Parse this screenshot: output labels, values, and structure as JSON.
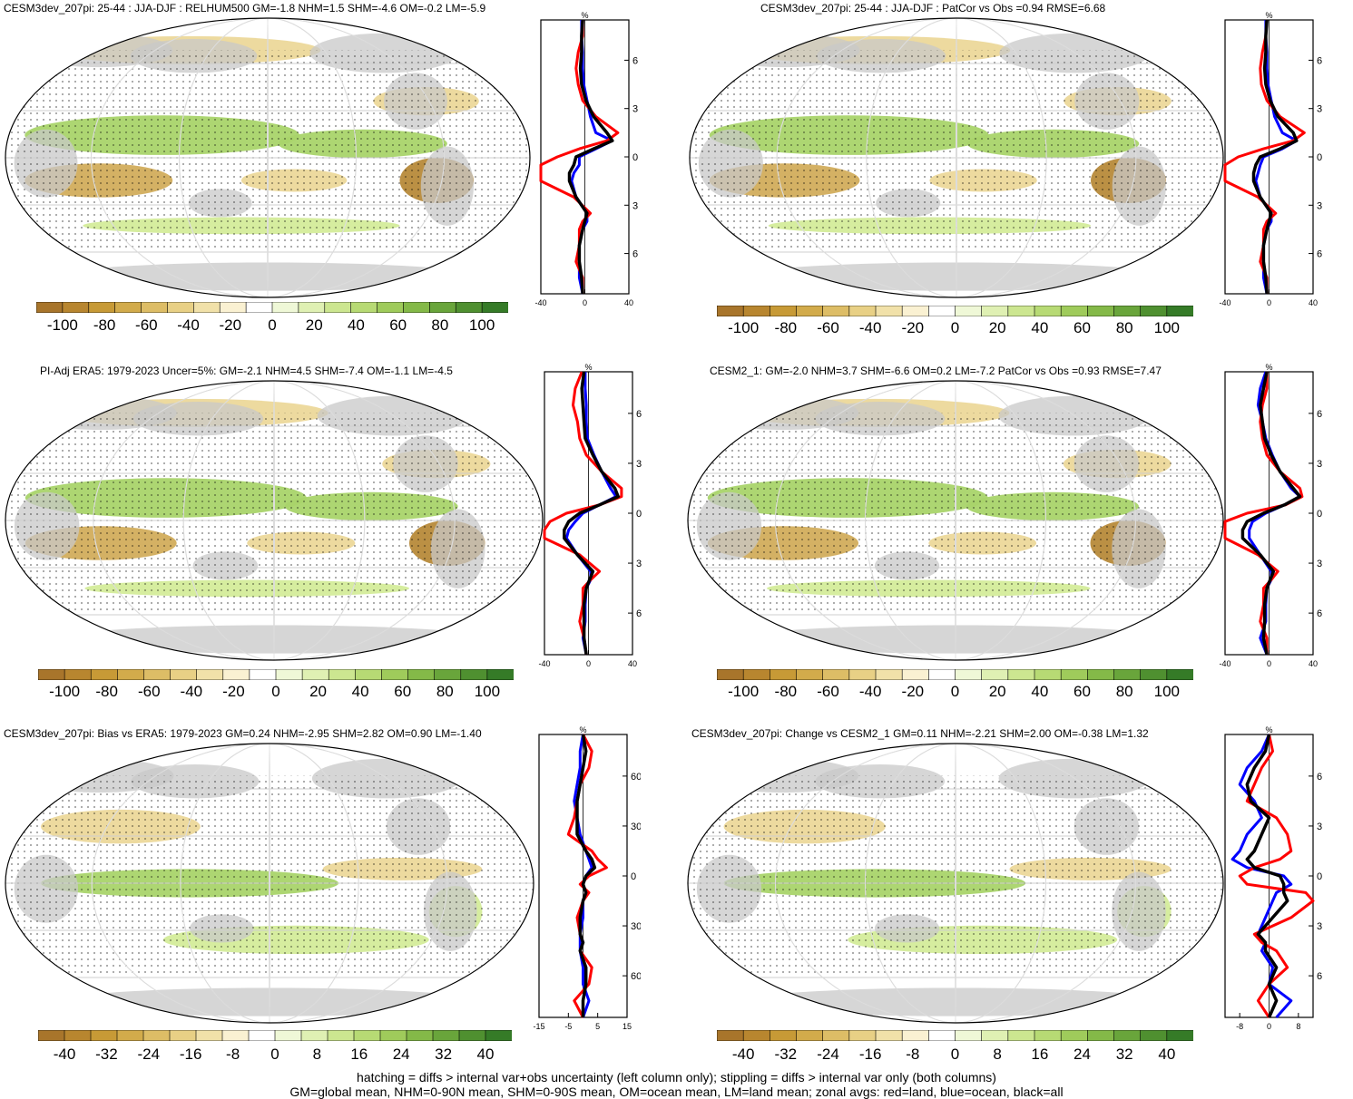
{
  "colors": {
    "ocean": "#ffffff",
    "land": "#c8c8c8",
    "brown_dark": "#b78a3a",
    "brown_mid": "#d2ad5c",
    "brown_light": "#ecd89a",
    "green_light": "#d4ec9a",
    "green_mid": "#a9d46a",
    "green_dark": "#6fae3e",
    "line_land": "#ff0000",
    "line_ocean": "#0000ff",
    "line_all": "#000000"
  },
  "colorbar_colors": [
    "#a8752b",
    "#b8862f",
    "#c79a36",
    "#d2ab4b",
    "#ddbd66",
    "#e8d085",
    "#f1e1a9",
    "#faf1d2",
    "#ffffff",
    "#eff8d7",
    "#dff0b3",
    "#cce690",
    "#b7da74",
    "#9fcb5b",
    "#84b948",
    "#69a53b",
    "#4f9030",
    "#357b27"
  ],
  "panels": [
    {
      "id": "p1",
      "title": "CESM3dev_207pi: 25-44 : JJA-DJF : RELHUM500 GM=-1.8 NHM=1.5 SHM=-4.6 OM=-0.2 LM=-5.9",
      "colorbar_labels": [
        "-100",
        "-80",
        "-60",
        "-40",
        "-20",
        "0",
        "20",
        "40",
        "60",
        "80",
        "100"
      ],
      "zonal_unit": "%",
      "zonal_xticks": [
        "-40",
        "0",
        "40"
      ],
      "zonal_xrange": [
        -40,
        40
      ],
      "zonal_lat_labels": [
        "60N",
        "30N",
        "0",
        "30S",
        "60S"
      ]
    },
    {
      "id": "p2",
      "title": "CESM3dev_207pi: 25-44 : JJA-DJF : PatCor vs Obs =0.94 RMSE=6.68",
      "colorbar_labels": [
        "-100",
        "-80",
        "-60",
        "-40",
        "-20",
        "0",
        "20",
        "40",
        "60",
        "80",
        "100"
      ],
      "zonal_unit": "%",
      "zonal_xticks": [
        "-40",
        "0",
        "40"
      ],
      "zonal_xrange": [
        -40,
        40
      ],
      "zonal_lat_labels": [
        "60N",
        "30N",
        "0",
        "30S",
        "60S"
      ]
    },
    {
      "id": "p3",
      "title": "PI-Adj ERA5: 1979-2023 Uncer=5%: GM=-2.1 NHM=4.5 SHM=-7.4 OM=-1.1 LM=-4.5",
      "colorbar_labels": [
        "-100",
        "-80",
        "-60",
        "-40",
        "-20",
        "0",
        "20",
        "40",
        "60",
        "80",
        "100"
      ],
      "zonal_unit": "%",
      "zonal_xticks": [
        "-40",
        "0",
        "40"
      ],
      "zonal_xrange": [
        -40,
        40
      ],
      "zonal_lat_labels": [
        "60N",
        "30N",
        "0",
        "30S",
        "60S"
      ]
    },
    {
      "id": "p4",
      "title": "CESM2_1: GM=-2.0 NHM=3.7 SHM=-6.6 OM=0.2 LM=-7.2 PatCor vs Obs =0.93 RMSE=7.47",
      "colorbar_labels": [
        "-100",
        "-80",
        "-60",
        "-40",
        "-20",
        "0",
        "20",
        "40",
        "60",
        "80",
        "100"
      ],
      "zonal_unit": "%",
      "zonal_xticks": [
        "-40",
        "0",
        "40"
      ],
      "zonal_xrange": [
        -40,
        40
      ],
      "zonal_lat_labels": [
        "60N",
        "30N",
        "0",
        "30S",
        "60S"
      ]
    },
    {
      "id": "p5",
      "title": "CESM3dev_207pi: Bias vs ERA5: 1979-2023 GM=0.24 NHM=-2.95 SHM=2.82 OM=0.90 LM=-1.40",
      "colorbar_labels": [
        "-40",
        "-32",
        "-24",
        "-16",
        "-8",
        "0",
        "8",
        "16",
        "24",
        "32",
        "40"
      ],
      "zonal_unit": "%",
      "zonal_xticks": [
        "-15",
        "-5",
        "5",
        "15"
      ],
      "zonal_xrange": [
        -15,
        15
      ],
      "zonal_lat_labels": [
        "60N",
        "30N",
        "0",
        "30S",
        "60S"
      ]
    },
    {
      "id": "p6",
      "title": "CESM3dev_207pi: Change vs CESM2_1 GM=0.11 NHM=-2.21 SHM=2.00 OM=-0.38 LM=1.32",
      "colorbar_labels": [
        "-40",
        "-32",
        "-24",
        "-16",
        "-8",
        "0",
        "8",
        "16",
        "24",
        "32",
        "40"
      ],
      "zonal_unit": "%",
      "zonal_xticks": [
        "-8",
        "0",
        "8"
      ],
      "zonal_xrange": [
        -12,
        12
      ],
      "zonal_lat_labels": [
        "60N",
        "30N",
        "0",
        "30S",
        "60S"
      ]
    }
  ],
  "zonal_profiles": {
    "lat": [
      85,
      75,
      65,
      55,
      45,
      35,
      25,
      15,
      10,
      5,
      0,
      -5,
      -10,
      -15,
      -25,
      -35,
      -40,
      -45,
      -55,
      -65,
      -75,
      -85
    ],
    "p1": {
      "land": [
        -2,
        -2,
        -6,
        -8,
        -6,
        -2,
        10,
        30,
        20,
        -5,
        -25,
        -40,
        -50,
        -45,
        -10,
        5,
        -2,
        -5,
        -5,
        -8,
        -2,
        -2
      ],
      "ocean": [
        -3,
        -3,
        -2,
        -2,
        -1,
        2,
        5,
        10,
        25,
        10,
        -5,
        -5,
        -10,
        -12,
        -8,
        2,
        2,
        -2,
        -5,
        -5,
        -5,
        -2
      ],
      "all": [
        -2,
        -3,
        -3,
        -4,
        -3,
        1,
        8,
        20,
        25,
        8,
        -8,
        -10,
        -14,
        -14,
        -8,
        2,
        0,
        -2,
        -5,
        -5,
        -3,
        -2
      ]
    },
    "p2": {
      "land": [
        -2,
        -3,
        -6,
        -8,
        -7,
        -2,
        10,
        32,
        22,
        -5,
        -28,
        -40,
        -50,
        -45,
        -10,
        6,
        -2,
        -5,
        -5,
        -8,
        -2,
        -2
      ],
      "ocean": [
        -3,
        -3,
        -2,
        -2,
        -1,
        2,
        5,
        12,
        25,
        12,
        -5,
        -8,
        -10,
        -12,
        -8,
        2,
        2,
        -2,
        -5,
        -5,
        -5,
        -2
      ],
      "all": [
        -2,
        -3,
        -3,
        -4,
        -3,
        1,
        8,
        22,
        25,
        10,
        -8,
        -12,
        -14,
        -14,
        -8,
        2,
        0,
        -2,
        -5,
        -5,
        -3,
        -2
      ]
    },
    "p3": {
      "land": [
        -6,
        -12,
        -14,
        -10,
        -8,
        -2,
        12,
        30,
        30,
        10,
        -20,
        -35,
        -45,
        -40,
        -8,
        10,
        2,
        -5,
        -5,
        -8,
        -4,
        -2
      ],
      "ocean": [
        -3,
        -3,
        -2,
        -2,
        -1,
        5,
        12,
        20,
        25,
        10,
        -5,
        -12,
        -18,
        -20,
        -10,
        2,
        2,
        -2,
        -3,
        -3,
        -5,
        -2
      ],
      "all": [
        -4,
        -6,
        -5,
        -4,
        -3,
        4,
        12,
        24,
        27,
        10,
        -8,
        -18,
        -22,
        -22,
        -10,
        4,
        1,
        -2,
        -4,
        -4,
        -4,
        -2
      ]
    },
    "p4": {
      "land": [
        -2,
        -2,
        -6,
        -8,
        -6,
        -2,
        10,
        28,
        30,
        15,
        -20,
        -40,
        -45,
        -42,
        -10,
        8,
        2,
        -5,
        -5,
        -8,
        -2,
        -2
      ],
      "ocean": [
        -3,
        -8,
        -10,
        -6,
        -3,
        3,
        10,
        20,
        28,
        14,
        -3,
        -15,
        -18,
        -18,
        -8,
        2,
        2,
        -2,
        -3,
        -3,
        -8,
        -2
      ],
      "all": [
        -2,
        -5,
        -8,
        -6,
        -4,
        2,
        10,
        22,
        28,
        14,
        -5,
        -20,
        -24,
        -24,
        -8,
        4,
        1,
        -2,
        -4,
        -4,
        -5,
        -2
      ]
    },
    "p5": {
      "land": [
        0,
        3,
        2,
        -1,
        -2,
        -3,
        -5,
        3,
        5,
        8,
        2,
        -1,
        2,
        0,
        -2,
        -1,
        0,
        -1,
        3,
        2,
        -3,
        0
      ],
      "ocean": [
        0,
        -1,
        -1,
        -2,
        -3,
        -2,
        -1,
        1,
        2,
        3,
        1,
        0,
        1,
        0,
        0,
        -1,
        -1,
        -1,
        0,
        0,
        2,
        0
      ],
      "all": [
        0,
        1,
        0,
        -1,
        -2,
        -2,
        -2,
        1,
        3,
        4,
        1,
        0,
        1,
        0,
        -1,
        -1,
        0,
        -1,
        1,
        1,
        0,
        0
      ]
    },
    "p6": {
      "land": [
        0,
        1,
        -2,
        -4,
        -6,
        2,
        5,
        6,
        3,
        -4,
        -8,
        -6,
        10,
        12,
        6,
        -4,
        -2,
        2,
        5,
        0,
        -3,
        0
      ],
      "ocean": [
        0,
        -2,
        -6,
        -8,
        -4,
        -2,
        -6,
        -8,
        -10,
        -6,
        4,
        6,
        2,
        1,
        -1,
        -3,
        -1,
        -2,
        1,
        0,
        6,
        2
      ],
      "all": [
        0,
        -1,
        -4,
        -6,
        -5,
        0,
        -2,
        -4,
        -6,
        -4,
        3,
        4,
        4,
        5,
        1,
        -3,
        -1,
        -1,
        2,
        0,
        2,
        0
      ]
    }
  },
  "footer": {
    "line1": "hatching = diffs > internal var+obs uncertainty (left column only); stippling = diffs > internal var only (both columns)",
    "line2": "GM=global mean, NHM=0-90N mean, SHM=0-90S mean, OM=ocean mean, LM=land mean; zonal avgs: red=land, blue=ocean, black=all"
  }
}
